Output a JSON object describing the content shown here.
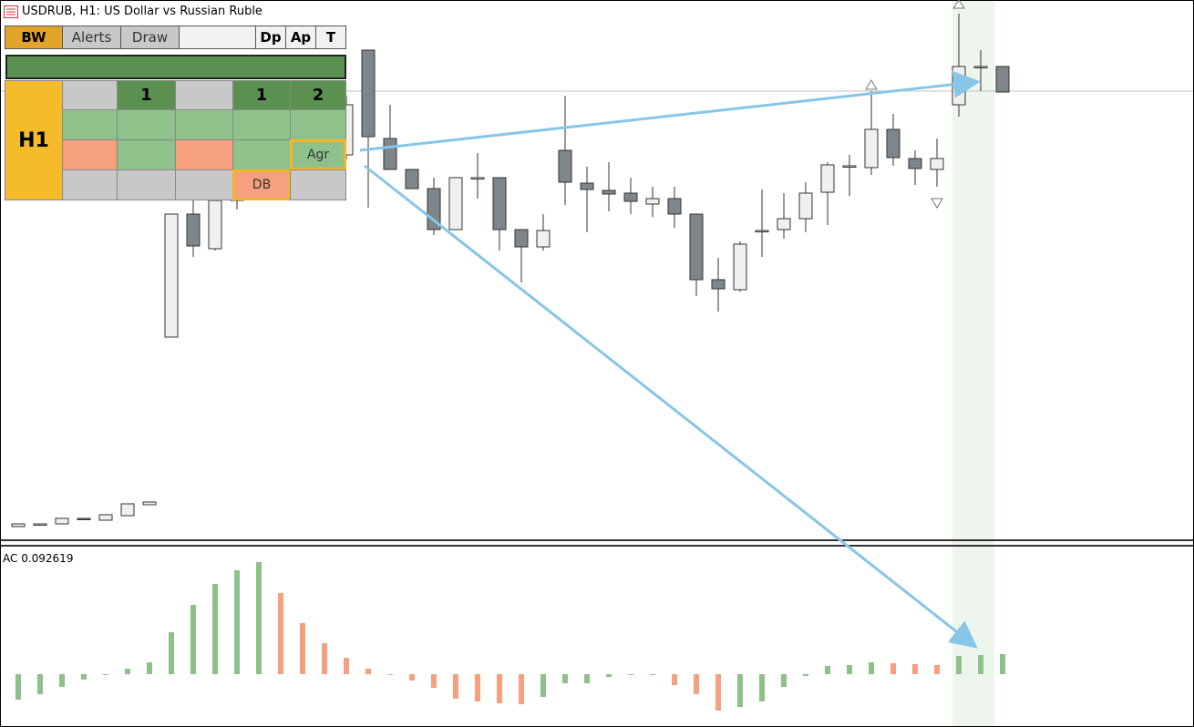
{
  "header": {
    "title": "USDRUB, H1:  US Dollar vs Russian Ruble"
  },
  "panel": {
    "buttons": [
      "BW",
      "Alerts",
      "Draw",
      "Dp",
      "Ap",
      "T"
    ],
    "timeframe": "H1",
    "row1": [
      "1",
      "1",
      "2"
    ],
    "signals": [
      "Agr",
      "DB"
    ]
  },
  "chart_data": [
    {
      "type": "candlestick",
      "ylim": [
        0,
        600
      ],
      "up_color": "#f0f0f0",
      "down_color": "#7d878b",
      "open": [
        22,
        25,
        25,
        31,
        29,
        34,
        46,
        230,
        365,
        327,
        380,
        385,
        400,
        410,
        420,
        430,
        545,
        448,
        414,
        393,
        348,
        405,
        405,
        348,
        329,
        435,
        399,
        391,
        388,
        376,
        382,
        365,
        293,
        282,
        347,
        348,
        360,
        389,
        418,
        416,
        458,
        426,
        414,
        485,
        527,
        527
      ],
      "high": [
        25,
        25,
        31,
        31,
        35,
        47,
        49,
        365,
        380,
        382,
        395,
        410,
        420,
        430,
        450,
        495,
        545,
        485,
        414,
        405,
        405,
        432,
        405,
        348,
        365,
        495,
        417,
        422,
        405,
        395,
        395,
        365,
        317,
        335,
        392,
        388,
        400,
        422,
        430,
        500,
        475,
        435,
        448,
        585,
        545,
        527
      ],
      "low": [
        22,
        25,
        25,
        30,
        29,
        34,
        46,
        230,
        318,
        325,
        370,
        380,
        395,
        405,
        415,
        425,
        372,
        414,
        393,
        342,
        348,
        382,
        325,
        290,
        325,
        375,
        345,
        368,
        365,
        362,
        350,
        275,
        258,
        280,
        318,
        338,
        345,
        353,
        385,
        408,
        418,
        397,
        395,
        472,
        500,
        499
      ],
      "close": [
        25,
        25,
        31,
        30,
        35,
        47,
        49,
        365,
        330,
        380,
        385,
        400,
        410,
        420,
        440,
        485,
        450,
        414,
        393,
        348,
        405,
        405,
        348,
        329,
        347,
        400,
        392,
        387,
        379,
        382,
        365,
        293,
        283,
        332,
        347,
        360,
        388,
        419,
        418,
        458,
        427,
        415,
        426,
        527,
        527,
        499
      ]
    },
    {
      "type": "bar",
      "label": "AC 0.092619",
      "ylim": [
        -50,
        130
      ],
      "up_color": "#8fbf8a",
      "down_color": "#f5a07e",
      "values": [
        -28,
        -22,
        -14,
        -6,
        -1,
        6,
        13,
        46,
        76,
        99,
        114,
        123,
        89,
        56,
        34,
        18,
        6,
        -1,
        -7,
        -15,
        -27,
        -30,
        -32,
        -33,
        -25,
        -10,
        -10,
        -3,
        -1,
        0,
        -12,
        -22,
        -40,
        -36,
        -30,
        -14,
        -2,
        9,
        10,
        13,
        12,
        11,
        10,
        20,
        21,
        22
      ]
    }
  ]
}
